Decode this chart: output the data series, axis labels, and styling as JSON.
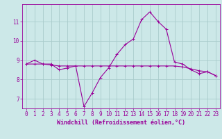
{
  "x": [
    0,
    1,
    2,
    3,
    4,
    5,
    6,
    7,
    8,
    9,
    10,
    11,
    12,
    13,
    14,
    15,
    16,
    17,
    18,
    19,
    20,
    21,
    22,
    23
  ],
  "line1": [
    8.8,
    9.0,
    8.8,
    8.8,
    8.5,
    8.6,
    8.7,
    6.6,
    7.3,
    8.1,
    8.6,
    9.3,
    9.8,
    10.1,
    11.1,
    11.5,
    11.0,
    10.6,
    8.9,
    8.8,
    8.5,
    8.3,
    8.4,
    8.2
  ],
  "line2": [
    8.8,
    8.8,
    8.8,
    8.75,
    8.7,
    8.7,
    8.7,
    8.7,
    8.7,
    8.7,
    8.7,
    8.7,
    8.7,
    8.7,
    8.7,
    8.7,
    8.7,
    8.7,
    8.7,
    8.65,
    8.55,
    8.45,
    8.4,
    8.2
  ],
  "color": "#990099",
  "bg_color": "#cce8e8",
  "grid_color": "#aacccc",
  "xlabel": "Windchill (Refroidissement éolien,°C)",
  "ylabel_ticks": [
    7,
    8,
    9,
    10,
    11
  ],
  "xlim": [
    -0.5,
    23.5
  ],
  "ylim": [
    6.5,
    11.9
  ],
  "tick_fontsize": 5.5,
  "label_fontsize": 6.0
}
